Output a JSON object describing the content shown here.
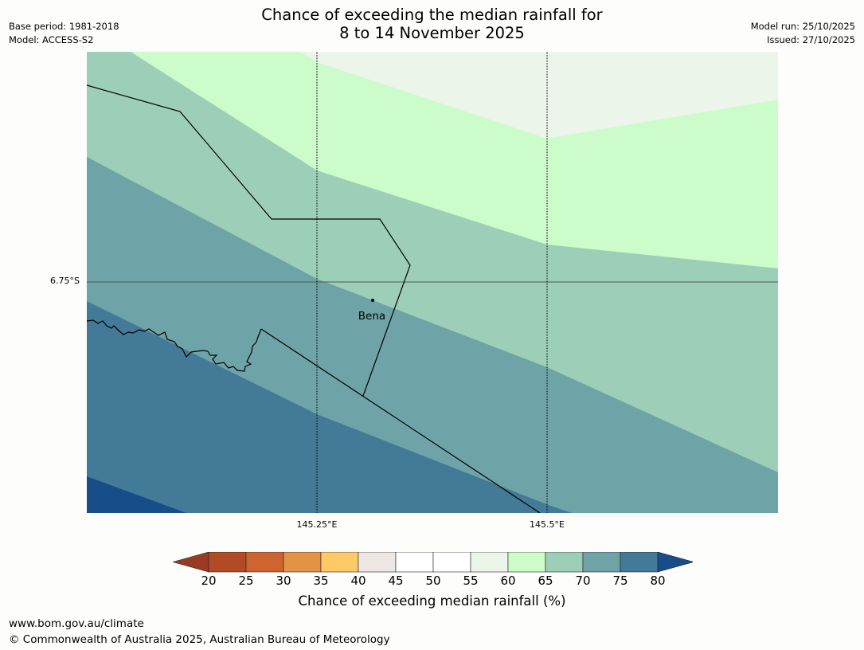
{
  "header": {
    "title_line1": "Chance of exceeding the median rainfall for",
    "title_line2": "8 to 14 November 2025",
    "base_period": "Base period: 1981-2018",
    "model": "Model: ACCESS-S2",
    "model_run": "Model run: 25/10/2025",
    "issued": "Issued: 27/10/2025"
  },
  "map": {
    "latitude_label": "6.75°S",
    "longitude_labels": [
      "145.25°E",
      "145.5°E"
    ],
    "place_label": "Bena"
  },
  "colorbar": {
    "title": "Chance of exceeding median rainfall (%)",
    "ticks": [
      "20",
      "25",
      "30",
      "35",
      "40",
      "45",
      "50",
      "55",
      "60",
      "65",
      "70",
      "75",
      "80"
    ],
    "colors": [
      "#9b3a22",
      "#b24a26",
      "#cf6430",
      "#e39346",
      "#fec967",
      "#eee8e5",
      "#ffffff",
      "#ffffff",
      "#ebf5ea",
      "#ccfcca",
      "#9dcfb8",
      "#6ea4a7",
      "#427a98",
      "#174d88"
    ]
  },
  "map_colors": {
    "band_55_60": "#ebf5ea",
    "band_60_65": "#ccfcca",
    "band_65_70": "#9dcfb8",
    "band_70_75": "#6ea4a7",
    "band_75_80": "#427a98",
    "band_80_plus": "#174d88"
  },
  "footer": {
    "website": "www.bom.gov.au/climate",
    "copyright": "© Commonwealth of Australia 2025, Australian Bureau of Meteorology"
  }
}
